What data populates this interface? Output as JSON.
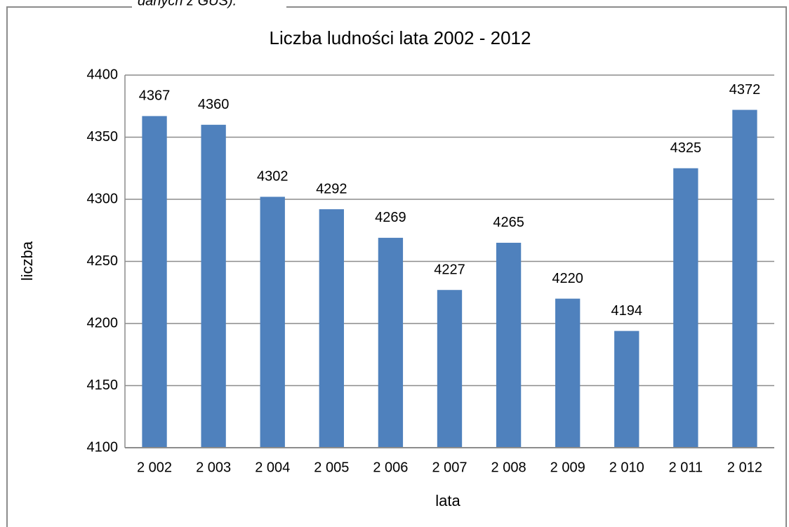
{
  "caption": "danych z GUS).",
  "chart_data": {
    "type": "bar",
    "title": "Liczba ludności lata 2002 - 2012",
    "xlabel": "lata",
    "ylabel": "liczba",
    "categories": [
      "2 002",
      "2 003",
      "2 004",
      "2 005",
      "2 006",
      "2 007",
      "2 008",
      "2 009",
      "2 010",
      "2 011",
      "2 012"
    ],
    "values": [
      4367,
      4360,
      4302,
      4292,
      4269,
      4227,
      4265,
      4220,
      4194,
      4325,
      4372
    ],
    "color": "#4f81bd",
    "ylim": [
      4100,
      4400
    ],
    "yticks": [
      4100,
      4150,
      4200,
      4250,
      4300,
      4350,
      4400
    ],
    "grid": true
  }
}
